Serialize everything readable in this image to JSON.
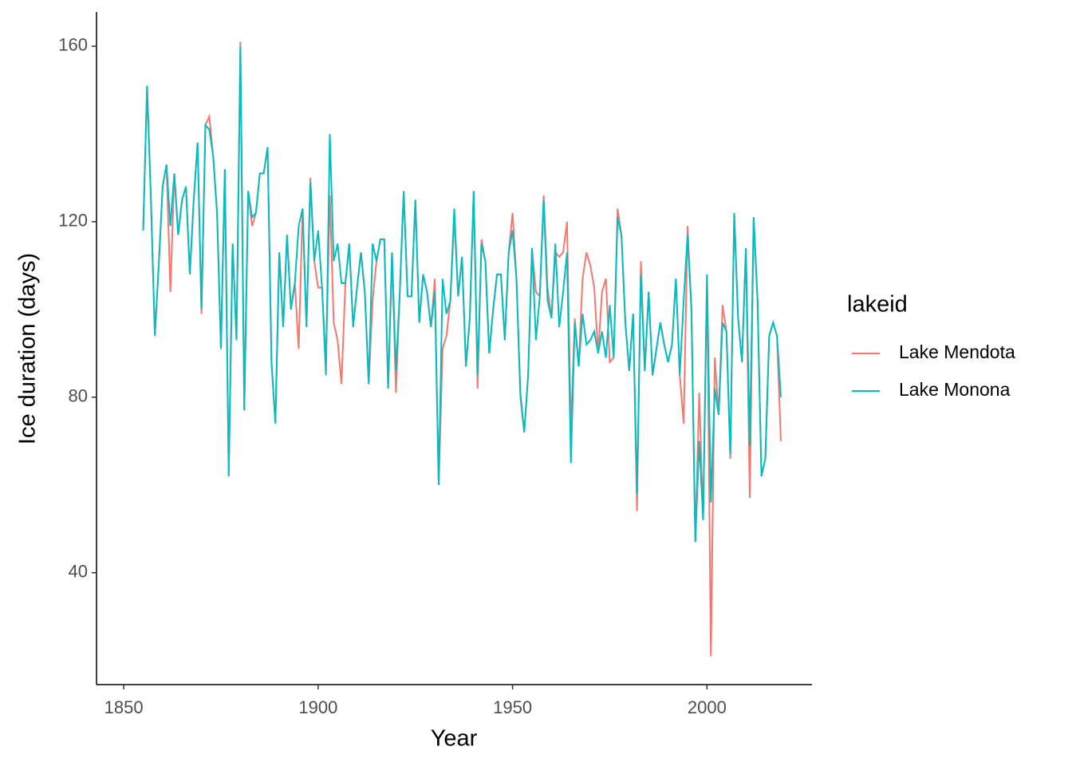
{
  "chart_data": {
    "type": "line",
    "x_label": "Year",
    "y_label": "Ice duration (days)",
    "legend_title": "lakeid",
    "legend": "right",
    "x": [
      1855,
      1856,
      1857,
      1858,
      1859,
      1860,
      1861,
      1862,
      1863,
      1864,
      1865,
      1866,
      1867,
      1868,
      1869,
      1870,
      1871,
      1872,
      1873,
      1874,
      1875,
      1876,
      1877,
      1878,
      1879,
      1880,
      1881,
      1882,
      1883,
      1884,
      1885,
      1886,
      1887,
      1888,
      1889,
      1890,
      1891,
      1892,
      1893,
      1894,
      1895,
      1896,
      1897,
      1898,
      1899,
      1900,
      1901,
      1902,
      1903,
      1904,
      1905,
      1906,
      1907,
      1908,
      1909,
      1910,
      1911,
      1912,
      1913,
      1914,
      1915,
      1916,
      1917,
      1918,
      1919,
      1920,
      1921,
      1922,
      1923,
      1924,
      1925,
      1926,
      1927,
      1928,
      1929,
      1930,
      1931,
      1932,
      1933,
      1934,
      1935,
      1936,
      1937,
      1938,
      1939,
      1940,
      1941,
      1942,
      1943,
      1944,
      1945,
      1946,
      1947,
      1948,
      1949,
      1950,
      1951,
      1952,
      1953,
      1954,
      1955,
      1956,
      1957,
      1958,
      1959,
      1960,
      1961,
      1962,
      1963,
      1964,
      1965,
      1966,
      1967,
      1968,
      1969,
      1970,
      1971,
      1972,
      1973,
      1974,
      1975,
      1976,
      1977,
      1978,
      1979,
      1980,
      1981,
      1982,
      1983,
      1984,
      1985,
      1986,
      1987,
      1988,
      1989,
      1990,
      1991,
      1992,
      1993,
      1994,
      1995,
      1996,
      1997,
      1998,
      1999,
      2000,
      2001,
      2002,
      2003,
      2004,
      2005,
      2006,
      2007,
      2008,
      2009,
      2010,
      2011,
      2012,
      2013,
      2014,
      2015,
      2016,
      2017,
      2018,
      2019
    ],
    "series": [
      {
        "name": "Lake Mendota",
        "color": "#F8766D",
        "values": [
          118,
          151,
          125,
          94,
          110,
          128,
          133,
          104,
          131,
          117,
          125,
          128,
          108,
          125,
          138,
          99,
          142,
          144,
          135,
          122,
          91,
          132,
          62,
          115,
          93,
          161,
          77,
          127,
          119,
          122,
          131,
          131,
          137,
          88,
          74,
          113,
          96,
          117,
          100,
          106,
          91,
          123,
          96,
          130,
          111,
          105,
          105,
          88,
          126,
          97,
          93,
          83,
          106,
          115,
          96,
          105,
          113,
          104,
          83,
          102,
          111,
          116,
          116,
          82,
          113,
          81,
          104,
          127,
          103,
          103,
          125,
          97,
          108,
          104,
          96,
          107,
          60,
          91,
          94,
          102,
          121,
          103,
          112,
          87,
          98,
          127,
          82,
          116,
          111,
          90,
          100,
          108,
          108,
          93,
          113,
          122,
          107,
          80,
          72,
          85,
          114,
          104,
          103,
          126,
          105,
          98,
          113,
          112,
          113,
          120,
          72,
          98,
          87,
          107,
          113,
          110,
          105,
          90,
          104,
          107,
          88,
          89,
          123,
          117,
          97,
          86,
          99,
          54,
          111,
          86,
          104,
          85,
          91,
          97,
          92,
          88,
          92,
          107,
          85,
          74,
          119,
          100,
          47,
          81,
          52,
          108,
          21,
          89,
          76,
          101,
          95,
          66,
          122,
          98,
          88,
          114,
          57,
          121,
          102,
          62,
          66,
          94,
          97,
          94,
          70
        ]
      },
      {
        "name": "Lake Monona",
        "color": "#00BFC4",
        "values": [
          118,
          151,
          125,
          94,
          110,
          128,
          133,
          119,
          131,
          117,
          125,
          128,
          108,
          125,
          138,
          100,
          142,
          141,
          135,
          122,
          91,
          132,
          62,
          115,
          93,
          160,
          77,
          127,
          121,
          122,
          131,
          131,
          137,
          88,
          74,
          113,
          96,
          117,
          100,
          106,
          119,
          123,
          96,
          129,
          111,
          118,
          105,
          85,
          140,
          111,
          115,
          106,
          106,
          115,
          96,
          105,
          113,
          104,
          83,
          115,
          111,
          116,
          116,
          82,
          113,
          86,
          104,
          127,
          103,
          103,
          125,
          97,
          108,
          104,
          96,
          104,
          60,
          107,
          99,
          102,
          123,
          103,
          112,
          87,
          98,
          127,
          85,
          115,
          111,
          90,
          100,
          108,
          108,
          93,
          113,
          118,
          107,
          81,
          72,
          85,
          114,
          93,
          103,
          125,
          102,
          98,
          115,
          96,
          104,
          113,
          65,
          97,
          87,
          99,
          92,
          93,
          95,
          90,
          95,
          89,
          101,
          89,
          121,
          117,
          97,
          86,
          99,
          58,
          108,
          86,
          104,
          85,
          91,
          97,
          92,
          88,
          92,
          107,
          85,
          102,
          117,
          100,
          47,
          70,
          52,
          108,
          56,
          82,
          76,
          97,
          95,
          67,
          122,
          98,
          88,
          114,
          69,
          121,
          102,
          62,
          66,
          94,
          97,
          94,
          80
        ]
      }
    ],
    "xlim": [
      1843,
      2027
    ],
    "xticks": [
      1850,
      1900,
      1950,
      2000
    ],
    "ylim": [
      14.5,
      167.8
    ],
    "yticks": [
      40,
      80,
      120,
      160
    ]
  }
}
